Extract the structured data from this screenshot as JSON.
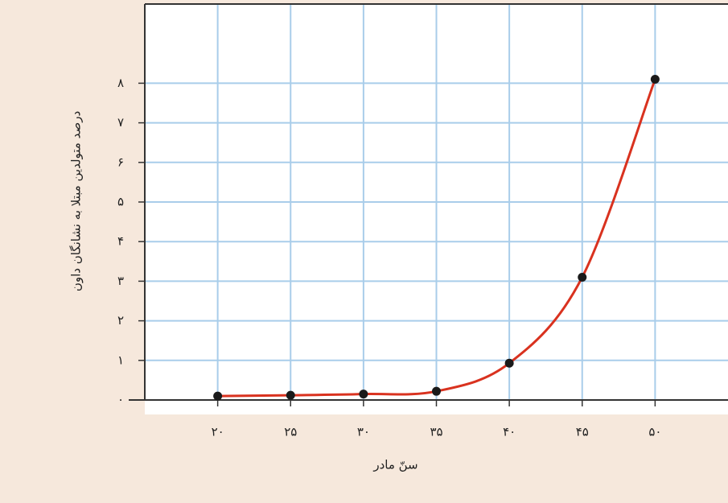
{
  "chart_data": {
    "type": "line",
    "x_label": "سنّ مادر",
    "y_label": "درصد متولدین مبتلا به نشانگان داون",
    "x": [
      20,
      25,
      30,
      35,
      40,
      45,
      50
    ],
    "series": [
      {
        "color": "#d9321f",
        "values": [
          0.1,
          0.12,
          0.15,
          0.22,
          0.93,
          3.1,
          8.1
        ]
      }
    ],
    "xlim": [
      15,
      55
    ],
    "xticks": [
      {
        "value": 20,
        "label": "۲۰"
      },
      {
        "value": 25,
        "label": "۲۵"
      },
      {
        "value": 30,
        "label": "۳۰"
      },
      {
        "value": 35,
        "label": "۳۵"
      },
      {
        "value": 40,
        "label": "۴۰"
      },
      {
        "value": 45,
        "label": "۴۵"
      },
      {
        "value": 50,
        "label": "۵۰"
      }
    ],
    "ylim": [
      0,
      10
    ],
    "yticks": [
      {
        "value": 0,
        "label": "۰"
      },
      {
        "value": 1,
        "label": "۱"
      },
      {
        "value": 2,
        "label": "۲"
      },
      {
        "value": 3,
        "label": "۳"
      },
      {
        "value": 4,
        "label": "۴"
      },
      {
        "value": 5,
        "label": "۵"
      },
      {
        "value": 6,
        "label": "۶"
      },
      {
        "value": 7,
        "label": "۷"
      },
      {
        "value": 8,
        "label": "۸"
      }
    ],
    "grid": true
  }
}
